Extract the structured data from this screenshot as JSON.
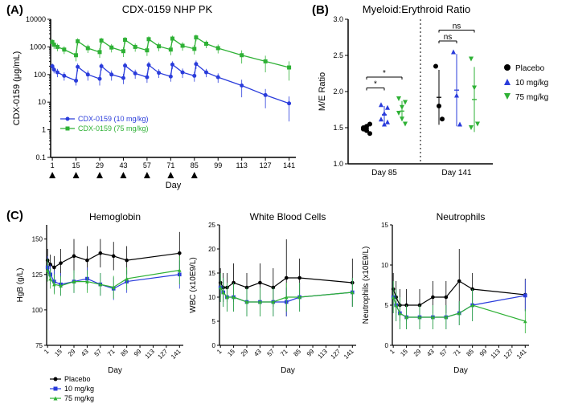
{
  "panelA": {
    "label": "(A)",
    "title": "CDX-0159 NHP PK",
    "type": "line",
    "xlabel": "Day",
    "ylabel": "CDX-0159 (μg/mL)",
    "xlim": [
      0,
      145
    ],
    "xticks": [
      1,
      15,
      29,
      43,
      57,
      71,
      85,
      99,
      113,
      127,
      141
    ],
    "ylim": [
      0.1,
      10000
    ],
    "yticks": [
      0.1,
      1,
      10,
      100,
      1000,
      10000
    ],
    "yscale": "log",
    "dose_arrows": [
      1,
      15,
      29,
      43,
      57,
      71,
      85
    ],
    "series": [
      {
        "name": "CDX-0159 (10 mg/kg)",
        "color": "#2a3cdb",
        "marker": "circle",
        "x": [
          1,
          2,
          4,
          8,
          15,
          16,
          22,
          29,
          30,
          36,
          43,
          44,
          50,
          57,
          58,
          64,
          71,
          72,
          78,
          85,
          86,
          92,
          99,
          113,
          127,
          141
        ],
        "y": [
          200,
          150,
          120,
          90,
          60,
          190,
          100,
          70,
          200,
          100,
          75,
          210,
          110,
          80,
          220,
          115,
          85,
          230,
          120,
          90,
          240,
          120,
          80,
          40,
          18,
          9
        ],
        "err": [
          50,
          40,
          40,
          30,
          20,
          60,
          40,
          30,
          60,
          40,
          30,
          60,
          40,
          30,
          70,
          40,
          30,
          70,
          45,
          35,
          80,
          40,
          30,
          25,
          12,
          7
        ]
      },
      {
        "name": "CDX-0159 (75 mg/kg)",
        "color": "#2eb135",
        "marker": "square",
        "x": [
          1,
          2,
          4,
          8,
          15,
          16,
          22,
          29,
          30,
          36,
          43,
          44,
          50,
          57,
          58,
          64,
          71,
          72,
          78,
          85,
          86,
          92,
          99,
          113,
          127,
          141
        ],
        "y": [
          1500,
          1200,
          1000,
          800,
          500,
          1600,
          900,
          650,
          1700,
          950,
          700,
          1800,
          1000,
          750,
          1900,
          1050,
          800,
          2000,
          1100,
          850,
          2200,
          1300,
          900,
          500,
          300,
          180
        ],
        "err": [
          400,
          350,
          300,
          250,
          200,
          450,
          300,
          250,
          450,
          320,
          270,
          500,
          330,
          280,
          520,
          350,
          300,
          550,
          370,
          320,
          600,
          400,
          320,
          250,
          180,
          120
        ]
      }
    ],
    "legend_text": [
      "CDX-0159 (10 mg/kg)",
      "CDX-0159 (75 mg/kg)"
    ]
  },
  "panelB": {
    "label": "(B)",
    "title": "Myeloid:Erythroid Ratio",
    "type": "scatter",
    "ylabel": "M/E Ratio",
    "ylim": [
      1.0,
      3.0
    ],
    "yticks": [
      1.0,
      1.5,
      2.0,
      2.5,
      3.0
    ],
    "groups": [
      "Day 85",
      "Day 141"
    ],
    "categories": [
      {
        "name": "Placebo",
        "color": "#000000",
        "marker": "circle"
      },
      {
        "name": "10 mg/kg",
        "color": "#2a3cdb",
        "marker": "triangle-up"
      },
      {
        "name": "75 mg/kg",
        "color": "#2eb135",
        "marker": "triangle-down"
      }
    ],
    "data": {
      "Day 85": {
        "Placebo": {
          "points": [
            1.5,
            1.52,
            1.55,
            1.48,
            1.46,
            1.42
          ],
          "mean": 1.49,
          "err": 0.05
        },
        "10 mg/kg": {
          "points": [
            1.62,
            1.7,
            1.78,
            1.82,
            1.55,
            1.58
          ],
          "mean": 1.68,
          "err": 0.12
        },
        "75 mg/kg": {
          "points": [
            1.7,
            1.78,
            1.85,
            1.9,
            1.62,
            1.55
          ],
          "mean": 1.73,
          "err": 0.14
        }
      },
      "Day 141": {
        "Placebo": {
          "points": [
            2.35,
            1.8,
            1.62
          ],
          "mean": 1.92,
          "err": 0.38
        },
        "10 mg/kg": {
          "points": [
            2.55,
            1.95,
            1.55
          ],
          "mean": 2.02,
          "err": 0.5
        },
        "75 mg/kg": {
          "points": [
            2.45,
            2.05,
            1.55,
            1.5
          ],
          "mean": 1.89,
          "err": 0.45
        }
      }
    },
    "sig_bars": [
      {
        "group": "Day 85",
        "from": "Placebo",
        "to": "10 mg/kg",
        "y": 2.05,
        "label": "*"
      },
      {
        "group": "Day 85",
        "from": "Placebo",
        "to": "75 mg/kg",
        "y": 2.2,
        "label": "*"
      },
      {
        "group": "Day 141",
        "from": "Placebo",
        "to": "10 mg/kg",
        "y": 2.7,
        "label": "ns"
      },
      {
        "group": "Day 141",
        "from": "Placebo",
        "to": "75 mg/kg",
        "y": 2.85,
        "label": "ns"
      }
    ]
  },
  "panelC": {
    "label": "(C)",
    "xlabel": "Day",
    "xticks": [
      1,
      15,
      29,
      43,
      57,
      71,
      85,
      99,
      113,
      127,
      141
    ],
    "categories": [
      {
        "name": "Placebo",
        "color": "#000000",
        "marker": "circle"
      },
      {
        "name": "10 mg/kg",
        "color": "#2a3cdb",
        "marker": "square"
      },
      {
        "name": "75 mg/kg",
        "color": "#2eb135",
        "marker": "triangle-up"
      }
    ],
    "subplots": [
      {
        "title": "Hemoglobin",
        "ylabel": "HgB (g/L)",
        "ylim": [
          75,
          160
        ],
        "yticks": [
          75,
          100,
          125,
          150
        ],
        "series": {
          "Placebo": {
            "x": [
              1,
              4,
              8,
              15,
              29,
              43,
              57,
              71,
              85,
              141
            ],
            "y": [
              135,
              132,
              130,
              133,
              138,
              135,
              140,
              138,
              135,
              140
            ],
            "err": [
              8,
              7,
              8,
              10,
              12,
              10,
              10,
              10,
              10,
              15
            ]
          },
          "10 mg/kg": {
            "x": [
              1,
              4,
              8,
              15,
              29,
              43,
              57,
              71,
              85,
              141
            ],
            "y": [
              130,
              125,
              120,
              118,
              120,
              122,
              118,
              115,
              120,
              125
            ],
            "err": [
              8,
              7,
              8,
              8,
              8,
              8,
              8,
              8,
              8,
              10
            ]
          },
          "75 mg/kg": {
            "x": [
              1,
              4,
              8,
              15,
              29,
              43,
              57,
              71,
              85,
              141
            ],
            "y": [
              128,
              122,
              118,
              117,
              120,
              120,
              118,
              116,
              122,
              128
            ],
            "err": [
              8,
              7,
              7,
              7,
              8,
              8,
              8,
              8,
              8,
              10
            ]
          }
        }
      },
      {
        "title": "White Blood Cells",
        "ylabel": "WBC (x10E9/L)",
        "ylim": [
          0,
          25
        ],
        "yticks": [
          0,
          5,
          10,
          15,
          20,
          25
        ],
        "series": {
          "Placebo": {
            "x": [
              1,
              4,
              8,
              15,
              29,
              43,
              57,
              71,
              85,
              141
            ],
            "y": [
              13,
              12,
              12,
              13,
              12,
              13,
              12,
              14,
              14,
              13
            ],
            "err": [
              3,
              3,
              3,
              4,
              3,
              4,
              4,
              8,
              4,
              5
            ]
          },
          "10 mg/kg": {
            "x": [
              1,
              4,
              8,
              15,
              29,
              43,
              57,
              71,
              85,
              141
            ],
            "y": [
              12,
              11,
              10,
              10,
              9,
              9,
              9,
              9,
              10,
              11
            ],
            "err": [
              3,
              3,
              3,
              3,
              3,
              3,
              3,
              3,
              3,
              3
            ]
          },
          "75 mg/kg": {
            "x": [
              1,
              4,
              8,
              15,
              29,
              43,
              57,
              71,
              85,
              141
            ],
            "y": [
              12,
              11,
              10,
              10,
              9,
              9,
              9,
              10,
              10,
              11
            ],
            "err": [
              3,
              3,
              3,
              3,
              3,
              3,
              3,
              3,
              3,
              3
            ]
          }
        }
      },
      {
        "title": "Neutrophils",
        "ylabel": "Neutrophils (x10E9/L)",
        "ylim": [
          0,
          15
        ],
        "yticks": [
          0,
          5,
          10,
          15
        ],
        "series": {
          "Placebo": {
            "x": [
              1,
              4,
              8,
              15,
              29,
              43,
              57,
              71,
              85,
              141
            ],
            "y": [
              7,
              6,
              5,
              5,
              5,
              6,
              6,
              8,
              7,
              6.3
            ],
            "err": [
              2,
              2,
              2,
              2,
              2,
              2,
              2,
              4,
              2,
              2
            ]
          },
          "10 mg/kg": {
            "x": [
              1,
              4,
              8,
              15,
              29,
              43,
              57,
              71,
              85,
              141
            ],
            "y": [
              6,
              5,
              4,
              3.5,
              3.5,
              3.5,
              3.5,
              4,
              5,
              6.2
            ],
            "err": [
              2,
              2,
              2,
              1.5,
              1.5,
              1.5,
              1.5,
              1.5,
              2,
              2
            ]
          },
          "75 mg/kg": {
            "x": [
              1,
              4,
              8,
              15,
              29,
              43,
              57,
              71,
              85,
              141
            ],
            "y": [
              6,
              5,
              4,
              3.5,
              3.5,
              3.5,
              3.5,
              4,
              5,
              3
            ],
            "err": [
              2,
              2,
              2,
              1.5,
              1.5,
              1.5,
              1.5,
              1.5,
              2,
              1.5
            ]
          }
        }
      }
    ]
  },
  "colors": {
    "bg": "#ffffff",
    "axis": "#000000"
  }
}
